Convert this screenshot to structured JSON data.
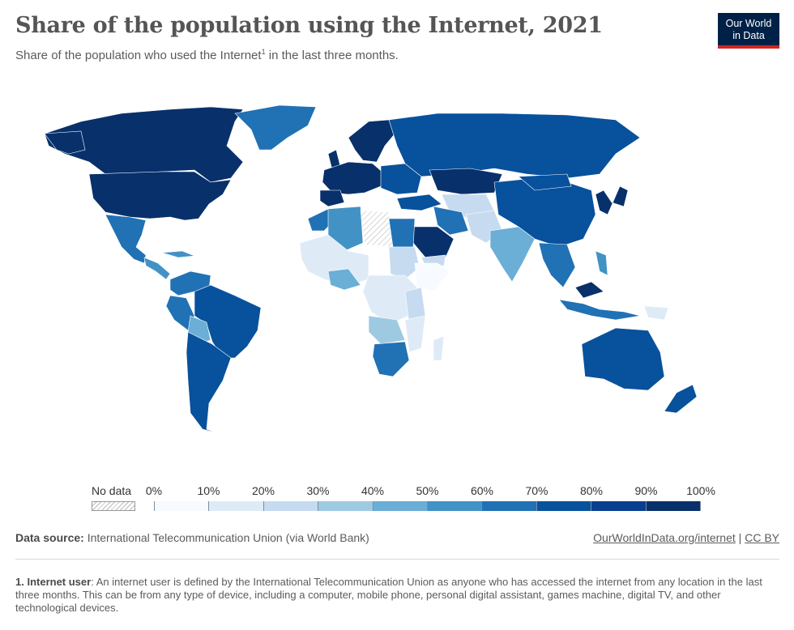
{
  "title": "Share of the population using the Internet, 2021",
  "subtitle": "Share of the population who used the Internet",
  "subtitle_sup": "1",
  "subtitle_end": " in the last three months.",
  "logo": {
    "line1": "Our World",
    "line2": "in Data"
  },
  "legend": {
    "no_data_label": "No data",
    "ticks": [
      "0%",
      "10%",
      "20%",
      "30%",
      "40%",
      "50%",
      "60%",
      "70%",
      "80%",
      "90%",
      "100%"
    ],
    "colors": [
      "#f7fbff",
      "#deebf7",
      "#c6dbef",
      "#9ecae1",
      "#6baed6",
      "#4292c6",
      "#2171b5",
      "#08519c",
      "#08408f",
      "#08306b"
    ]
  },
  "source": {
    "label": "Data source:",
    "text": " International Telecommunication Union (via World Bank)"
  },
  "links": {
    "url": "OurWorldInData.org/internet",
    "sep": " | ",
    "license": "CC BY"
  },
  "footnote": {
    "label": "1. Internet user",
    "text": ": An internet user is defined by the International Telecommunication Union as anyone who has accessed the internet from any location in the last three months. This can be from any type of device, including a computer, mobile phone, personal digital assistant, games machine, digital TV, and other technological devices."
  }
}
